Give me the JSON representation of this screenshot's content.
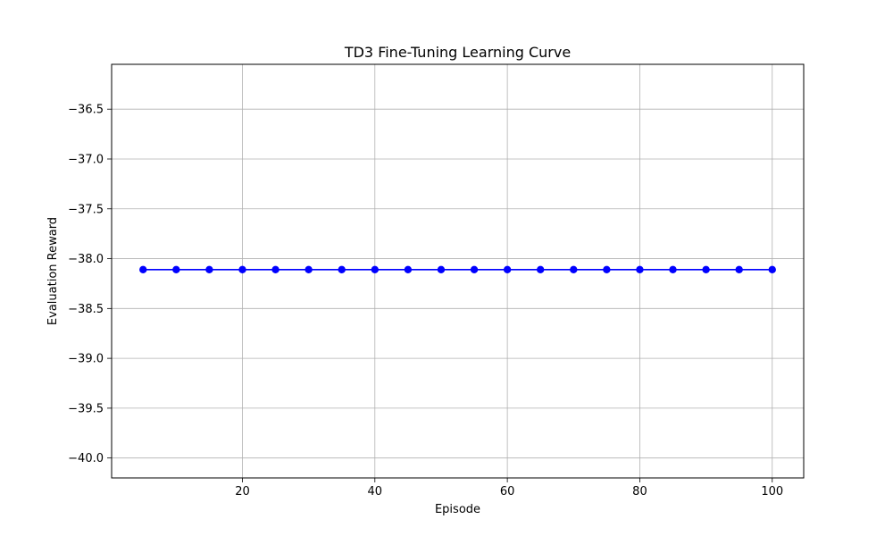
{
  "chart_data": {
    "type": "line",
    "title": "TD3 Fine-Tuning Learning Curve",
    "xlabel": "Episode",
    "ylabel": "Evaluation Reward",
    "xlim": [
      0.25,
      104.75
    ],
    "ylim": [
      -40.2,
      -36.05
    ],
    "xticks": [
      20,
      40,
      60,
      80,
      100
    ],
    "xtick_labels": [
      "20",
      "40",
      "60",
      "80",
      "100"
    ],
    "yticks": [
      -40.0,
      -39.5,
      -39.0,
      -38.5,
      -38.0,
      -37.5,
      -37.0,
      -36.5
    ],
    "ytick_labels": [
      "−40.0",
      "−39.5",
      "−39.0",
      "−38.5",
      "−38.0",
      "−37.5",
      "−37.0",
      "−36.5"
    ],
    "grid": true,
    "series": [
      {
        "color": "#0000ff",
        "marker": "circle",
        "x": [
          5,
          10,
          15,
          20,
          25,
          30,
          35,
          40,
          45,
          50,
          55,
          60,
          65,
          70,
          75,
          80,
          85,
          90,
          95,
          100
        ],
        "y": [
          -38.11,
          -38.11,
          -38.11,
          -38.11,
          -38.11,
          -38.11,
          -38.11,
          -38.11,
          -38.11,
          -38.11,
          -38.11,
          -38.11,
          -38.11,
          -38.11,
          -38.11,
          -38.11,
          -38.11,
          -38.11,
          -38.11,
          -38.11
        ]
      }
    ]
  }
}
